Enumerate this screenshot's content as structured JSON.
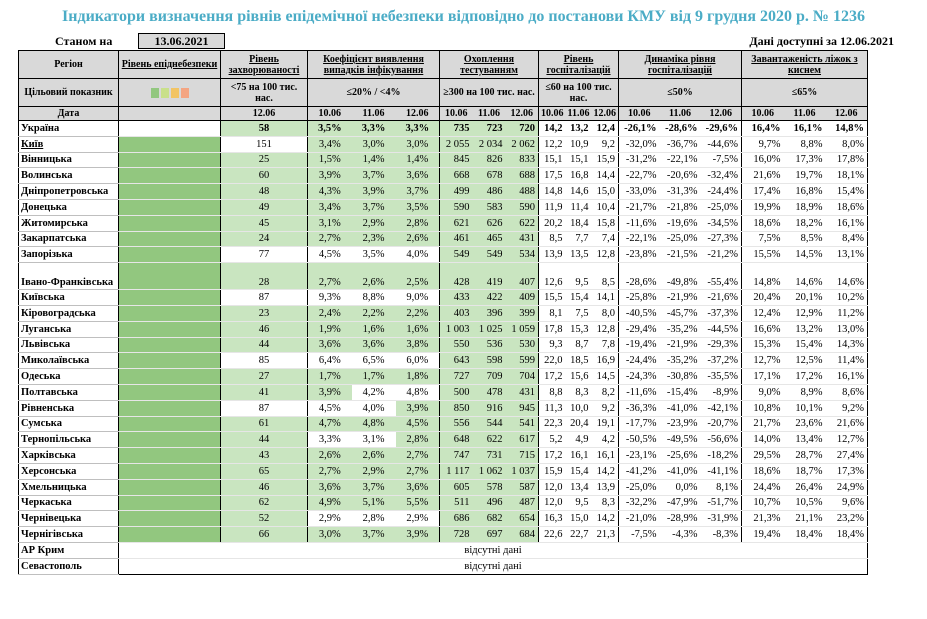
{
  "title": "Індикатори визначення рівнів епідемічної небезпеки відповідно до постанови КМУ від 9 грудня 2020 р. № 1236",
  "status": {
    "label": "Станом на",
    "date": "13.06.2021",
    "available": "Дані доступні за 12.06.2021"
  },
  "headers": {
    "region": "Регіон",
    "epid": "Рівень епіднебезпеки",
    "incidence": "Рівень захворюваності",
    "detection": "Коефіцієнт виявлення випадків інфікування",
    "testing": "Охоплення тестуванням",
    "hosp": "Рівень госпіталізацій",
    "dyn": "Динаміка рівня госпіталізацій",
    "oxygen": "Завантаженість ліжок з киснем"
  },
  "target": {
    "label": "Цільовий показник",
    "incidence": "<75 на 100 тис. нас.",
    "detection": "≤20% / <4%",
    "testing": "≥300 на 100 тис. нас.",
    "hosp": "≤60 на 100 тис. нас.",
    "dyn": "≤50%",
    "oxygen": "≤65%"
  },
  "date_label": "Дата",
  "dates": {
    "inc": "12.06",
    "d1": "10.06",
    "d2": "11.06",
    "d3": "12.06"
  },
  "colors": {
    "header_gray": "#d9d9d9",
    "light_green": "#c9e5c0",
    "dark_green": "#92c77f",
    "title_blue": "#4bacc6",
    "scale": [
      "#92c77f",
      "#c9e08a",
      "#f2c464",
      "#f4a582"
    ]
  },
  "no_data": "відсутні дані",
  "rows": [
    {
      "region": "Україна",
      "inc": "58",
      "det": [
        "3,5%",
        "3,3%",
        "3,3%"
      ],
      "test": [
        "735",
        "723",
        "720"
      ],
      "hosp": [
        "14,2",
        "13,2",
        "12,4"
      ],
      "dyn": [
        "-26,1%",
        "-28,6%",
        "-29,6%"
      ],
      "oxy": [
        "16,4%",
        "16,1%",
        "14,8%"
      ]
    },
    {
      "region": "Київ",
      "inc": "151",
      "det": [
        "3,4%",
        "3,0%",
        "3,0%"
      ],
      "test": [
        "2 055",
        "2 034",
        "2 062"
      ],
      "hosp": [
        "12,2",
        "10,9",
        "9,2"
      ],
      "dyn": [
        "-32,0%",
        "-36,7%",
        "-44,6%"
      ],
      "oxy": [
        "9,7%",
        "8,8%",
        "8,0%"
      ]
    },
    {
      "region": "Вінницька",
      "inc": "25",
      "det": [
        "1,5%",
        "1,4%",
        "1,4%"
      ],
      "test": [
        "845",
        "826",
        "833"
      ],
      "hosp": [
        "15,1",
        "15,1",
        "15,9"
      ],
      "dyn": [
        "-31,2%",
        "-22,1%",
        "-7,5%"
      ],
      "oxy": [
        "16,0%",
        "17,3%",
        "17,8%"
      ]
    },
    {
      "region": "Волинська",
      "inc": "60",
      "det": [
        "3,9%",
        "3,7%",
        "3,6%"
      ],
      "test": [
        "668",
        "678",
        "688"
      ],
      "hosp": [
        "17,5",
        "16,8",
        "14,4"
      ],
      "dyn": [
        "-22,7%",
        "-20,6%",
        "-32,4%"
      ],
      "oxy": [
        "21,6%",
        "19,7%",
        "18,1%"
      ]
    },
    {
      "region": "Дніпропетровська",
      "inc": "48",
      "det": [
        "4,3%",
        "3,9%",
        "3,7%"
      ],
      "test": [
        "499",
        "486",
        "488"
      ],
      "hosp": [
        "14,8",
        "14,6",
        "15,0"
      ],
      "dyn": [
        "-33,0%",
        "-31,3%",
        "-24,4%"
      ],
      "oxy": [
        "17,4%",
        "16,8%",
        "15,4%"
      ]
    },
    {
      "region": "Донецька",
      "inc": "49",
      "det": [
        "3,4%",
        "3,7%",
        "3,5%"
      ],
      "test": [
        "590",
        "583",
        "590"
      ],
      "hosp": [
        "11,9",
        "11,4",
        "10,4"
      ],
      "dyn": [
        "-21,7%",
        "-21,8%",
        "-25,0%"
      ],
      "oxy": [
        "19,9%",
        "18,9%",
        "18,6%"
      ]
    },
    {
      "region": "Житомирська",
      "inc": "45",
      "det": [
        "3,1%",
        "2,9%",
        "2,8%"
      ],
      "test": [
        "621",
        "626",
        "622"
      ],
      "hosp": [
        "20,2",
        "18,4",
        "15,8"
      ],
      "dyn": [
        "-11,6%",
        "-19,6%",
        "-34,5%"
      ],
      "oxy": [
        "18,6%",
        "18,2%",
        "16,1%"
      ]
    },
    {
      "region": "Закарпатська",
      "inc": "24",
      "det": [
        "2,7%",
        "2,3%",
        "2,6%"
      ],
      "test": [
        "461",
        "465",
        "431"
      ],
      "hosp": [
        "8,5",
        "7,7",
        "7,4"
      ],
      "dyn": [
        "-22,1%",
        "-25,0%",
        "-27,3%"
      ],
      "oxy": [
        "7,5%",
        "8,5%",
        "8,4%"
      ]
    },
    {
      "region": "Запорізька",
      "inc": "77",
      "det": [
        "4,5%",
        "3,5%",
        "4,0%"
      ],
      "test": [
        "549",
        "549",
        "534"
      ],
      "hosp": [
        "13,9",
        "13,5",
        "12,8"
      ],
      "dyn": [
        "-23,8%",
        "-21,5%",
        "-21,2%"
      ],
      "oxy": [
        "15,5%",
        "14,5%",
        "13,1%"
      ]
    },
    {
      "region": "Івано-Франківська",
      "inc": "28",
      "det": [
        "2,7%",
        "2,6%",
        "2,5%"
      ],
      "test": [
        "428",
        "419",
        "407"
      ],
      "hosp": [
        "12,6",
        "9,5",
        "8,5"
      ],
      "dyn": [
        "-28,6%",
        "-49,8%",
        "-55,4%"
      ],
      "oxy": [
        "14,8%",
        "14,6%",
        "14,6%"
      ]
    },
    {
      "region": "Київська",
      "inc": "87",
      "det": [
        "9,3%",
        "8,8%",
        "9,0%"
      ],
      "test": [
        "433",
        "422",
        "409"
      ],
      "hosp": [
        "15,5",
        "15,4",
        "14,1"
      ],
      "dyn": [
        "-25,8%",
        "-21,9%",
        "-21,6%"
      ],
      "oxy": [
        "20,4%",
        "20,1%",
        "10,2%"
      ]
    },
    {
      "region": "Кіровоградська",
      "inc": "23",
      "det": [
        "2,4%",
        "2,2%",
        "2,2%"
      ],
      "test": [
        "403",
        "396",
        "399"
      ],
      "hosp": [
        "8,1",
        "7,5",
        "8,0"
      ],
      "dyn": [
        "-40,5%",
        "-45,7%",
        "-37,3%"
      ],
      "oxy": [
        "12,4%",
        "12,9%",
        "11,2%"
      ]
    },
    {
      "region": "Луганська",
      "inc": "46",
      "det": [
        "1,9%",
        "1,6%",
        "1,6%"
      ],
      "test": [
        "1 003",
        "1 025",
        "1 059"
      ],
      "hosp": [
        "17,8",
        "15,3",
        "12,8"
      ],
      "dyn": [
        "-29,4%",
        "-35,2%",
        "-44,5%"
      ],
      "oxy": [
        "16,6%",
        "13,2%",
        "13,0%"
      ]
    },
    {
      "region": "Львівська",
      "inc": "44",
      "det": [
        "3,6%",
        "3,6%",
        "3,8%"
      ],
      "test": [
        "550",
        "536",
        "530"
      ],
      "hosp": [
        "9,3",
        "8,7",
        "7,8"
      ],
      "dyn": [
        "-19,4%",
        "-21,9%",
        "-29,3%"
      ],
      "oxy": [
        "15,3%",
        "15,4%",
        "14,3%"
      ]
    },
    {
      "region": "Миколаївська",
      "inc": "85",
      "det": [
        "6,4%",
        "6,5%",
        "6,0%"
      ],
      "test": [
        "643",
        "598",
        "599"
      ],
      "hosp": [
        "22,0",
        "18,5",
        "16,9"
      ],
      "dyn": [
        "-24,4%",
        "-35,2%",
        "-37,2%"
      ],
      "oxy": [
        "12,7%",
        "12,5%",
        "11,4%"
      ]
    },
    {
      "region": "Одеська",
      "inc": "27",
      "det": [
        "1,7%",
        "1,7%",
        "1,8%"
      ],
      "test": [
        "727",
        "709",
        "704"
      ],
      "hosp": [
        "17,2",
        "15,6",
        "14,5"
      ],
      "dyn": [
        "-24,3%",
        "-30,8%",
        "-35,5%"
      ],
      "oxy": [
        "17,1%",
        "17,2%",
        "16,1%"
      ]
    },
    {
      "region": "Полтавська",
      "inc": "41",
      "det": [
        "3,9%",
        "4,2%",
        "4,8%"
      ],
      "test": [
        "500",
        "478",
        "431"
      ],
      "hosp": [
        "8,8",
        "8,3",
        "8,2"
      ],
      "dyn": [
        "-11,6%",
        "-15,4%",
        "-8,9%"
      ],
      "oxy": [
        "9,0%",
        "8,9%",
        "8,6%"
      ]
    },
    {
      "region": "Рівненська",
      "inc": "87",
      "det": [
        "4,5%",
        "4,0%",
        "3,9%"
      ],
      "test": [
        "850",
        "916",
        "945"
      ],
      "hosp": [
        "11,3",
        "10,0",
        "9,2"
      ],
      "dyn": [
        "-36,3%",
        "-41,0%",
        "-42,1%"
      ],
      "oxy": [
        "10,8%",
        "10,1%",
        "9,2%"
      ]
    },
    {
      "region": "Сумська",
      "inc": "61",
      "det": [
        "4,7%",
        "4,8%",
        "4,5%"
      ],
      "test": [
        "556",
        "544",
        "541"
      ],
      "hosp": [
        "22,3",
        "20,4",
        "19,1"
      ],
      "dyn": [
        "-17,7%",
        "-23,9%",
        "-20,7%"
      ],
      "oxy": [
        "21,7%",
        "23,6%",
        "21,6%"
      ]
    },
    {
      "region": "Тернопільська",
      "inc": "44",
      "det": [
        "3,3%",
        "3,1%",
        "2,8%"
      ],
      "test": [
        "648",
        "622",
        "617"
      ],
      "hosp": [
        "5,2",
        "4,9",
        "4,2"
      ],
      "dyn": [
        "-50,5%",
        "-49,5%",
        "-56,6%"
      ],
      "oxy": [
        "14,0%",
        "13,4%",
        "12,7%"
      ]
    },
    {
      "region": "Харківська",
      "inc": "43",
      "det": [
        "2,6%",
        "2,6%",
        "2,7%"
      ],
      "test": [
        "747",
        "731",
        "715"
      ],
      "hosp": [
        "17,2",
        "16,1",
        "16,1"
      ],
      "dyn": [
        "-23,1%",
        "-25,6%",
        "-18,2%"
      ],
      "oxy": [
        "29,5%",
        "28,7%",
        "27,4%"
      ]
    },
    {
      "region": "Херсонська",
      "inc": "65",
      "det": [
        "2,7%",
        "2,9%",
        "2,7%"
      ],
      "test": [
        "1 117",
        "1 062",
        "1 037"
      ],
      "hosp": [
        "15,9",
        "15,4",
        "14,2"
      ],
      "dyn": [
        "-41,2%",
        "-41,0%",
        "-41,1%"
      ],
      "oxy": [
        "18,6%",
        "18,7%",
        "17,3%"
      ]
    },
    {
      "region": "Хмельницька",
      "inc": "46",
      "det": [
        "3,6%",
        "3,7%",
        "3,6%"
      ],
      "test": [
        "605",
        "578",
        "587"
      ],
      "hosp": [
        "12,0",
        "13,4",
        "13,9"
      ],
      "dyn": [
        "-25,0%",
        "0,0%",
        "8,1%"
      ],
      "oxy": [
        "24,4%",
        "26,4%",
        "24,9%"
      ]
    },
    {
      "region": "Черкаська",
      "inc": "62",
      "det": [
        "4,9%",
        "5,1%",
        "5,5%"
      ],
      "test": [
        "511",
        "496",
        "487"
      ],
      "hosp": [
        "12,0",
        "9,5",
        "8,3"
      ],
      "dyn": [
        "-32,2%",
        "-47,9%",
        "-51,7%"
      ],
      "oxy": [
        "10,7%",
        "10,5%",
        "9,6%"
      ]
    },
    {
      "region": "Чернівецька",
      "inc": "52",
      "det": [
        "2,9%",
        "2,8%",
        "2,9%"
      ],
      "test": [
        "686",
        "682",
        "654"
      ],
      "hosp": [
        "16,3",
        "15,0",
        "14,2"
      ],
      "dyn": [
        "-21,0%",
        "-28,9%",
        "-31,9%"
      ],
      "oxy": [
        "21,3%",
        "21,1%",
        "23,2%"
      ]
    },
    {
      "region": "Чернігівська",
      "inc": "66",
      "det": [
        "3,0%",
        "3,7%",
        "3,9%"
      ],
      "test": [
        "728",
        "697",
        "684"
      ],
      "hosp": [
        "22,6",
        "22,7",
        "21,3"
      ],
      "dyn": [
        "-7,5%",
        "-4,3%",
        "-8,3%"
      ],
      "oxy": [
        "19,4%",
        "18,4%",
        "18,4%"
      ]
    }
  ],
  "nodata_rows": [
    {
      "region": "АР Крим"
    },
    {
      "region": "Севастополь"
    }
  ]
}
